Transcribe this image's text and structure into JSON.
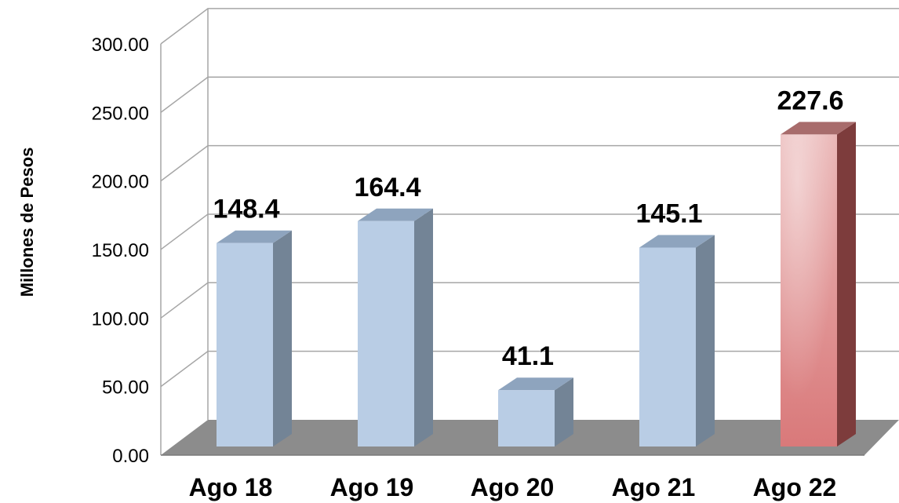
{
  "chart_data": {
    "type": "bar",
    "title": "",
    "xlabel": "",
    "ylabel": "Millones de Pesos",
    "categories": [
      "Ago 18",
      "Ago 19",
      "Ago 20",
      "Ago 21",
      "Ago 22"
    ],
    "values": [
      148.4,
      164.4,
      41.1,
      145.1,
      227.6
    ],
    "data_labels": [
      "148.4",
      "164.4",
      "41.1",
      "145.1",
      "227.6"
    ],
    "y_ticks": [
      "0.00",
      "50.00",
      "100.00",
      "150.00",
      "200.00",
      "250.00",
      "300.00"
    ],
    "ylim": [
      0,
      300
    ],
    "grid": true,
    "legend": "none",
    "style": "3d-column",
    "colors": {
      "bar_front": "#b9cde5",
      "bar_top": "#8ea4be",
      "bar_side": "#738496",
      "highlight_front": "#d9797a",
      "highlight_light": "#eab7b7",
      "highlight_top": "#a86c6c",
      "highlight_side": "#7d3c3c",
      "floor": "#8c8c8c",
      "grid": "#a6a6a6"
    },
    "highlight_index": 4
  }
}
